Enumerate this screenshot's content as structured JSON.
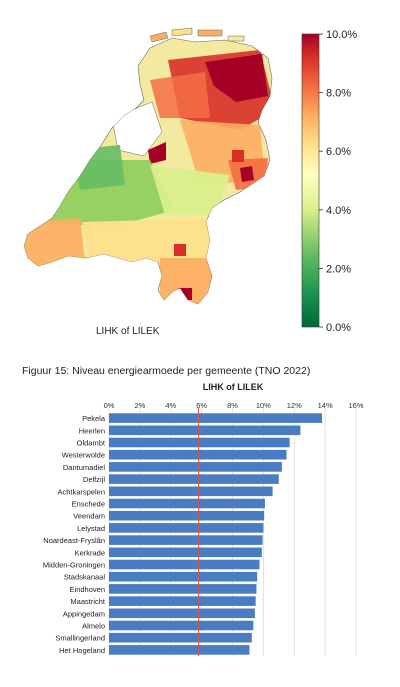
{
  "map": {
    "caption": "LIHK of LILEK",
    "colorbar_ticks": [
      "10.0%",
      "8.0%",
      "6.0%",
      "4.0%",
      "2.0%",
      "0.0%"
    ]
  },
  "figure_title": "Figuur 15: Niveau energiearmoede per gemeente (TNO 2022)",
  "chart_data": [
    {
      "type": "heatmap",
      "colorbar": {
        "min": 0,
        "max": 10,
        "unit": "%",
        "ticks": [
          10,
          8,
          6,
          4,
          2,
          0
        ],
        "colors": [
          "#006837",
          "#1a9850",
          "#66bd63",
          "#d9ef8b",
          "#ffffbf",
          "#fee08b",
          "#fdae61",
          "#f46d43",
          "#d73027",
          "#a50026"
        ]
      },
      "xlabel": "LIHK of LILEK"
    },
    {
      "type": "bar",
      "orientation": "horizontal",
      "title": "LIHK of LILEK",
      "categories": [
        "Pekela",
        "Heerlen",
        "Oldambt",
        "Westerwolde",
        "Dantumadiel",
        "Delfzijl",
        "Achtkarspelen",
        "Enschede",
        "Veendam",
        "Lelystad",
        "Noardeast-Fryslân",
        "Kerkrade",
        "Midden-Groningen",
        "Stadskanaal",
        "Eindhoven",
        "Maastricht",
        "Appingedam",
        "Almelo",
        "Smallingerland",
        "Het Hogeland"
      ],
      "values": [
        13.8,
        12.4,
        11.7,
        11.5,
        11.2,
        11.0,
        10.6,
        10.1,
        10.05,
        10.0,
        9.95,
        9.9,
        9.75,
        9.6,
        9.55,
        9.5,
        9.45,
        9.35,
        9.25,
        9.1
      ],
      "xlim": [
        0,
        16
      ],
      "x_ticks": [
        "0%",
        "2%",
        "4%",
        "6%",
        "8%",
        "10%",
        "12%",
        "14%",
        "16%"
      ],
      "reference_line": 5.8,
      "bar_color": "#4a7cc3",
      "reference_color": "#d9534f",
      "grid": true
    }
  ]
}
